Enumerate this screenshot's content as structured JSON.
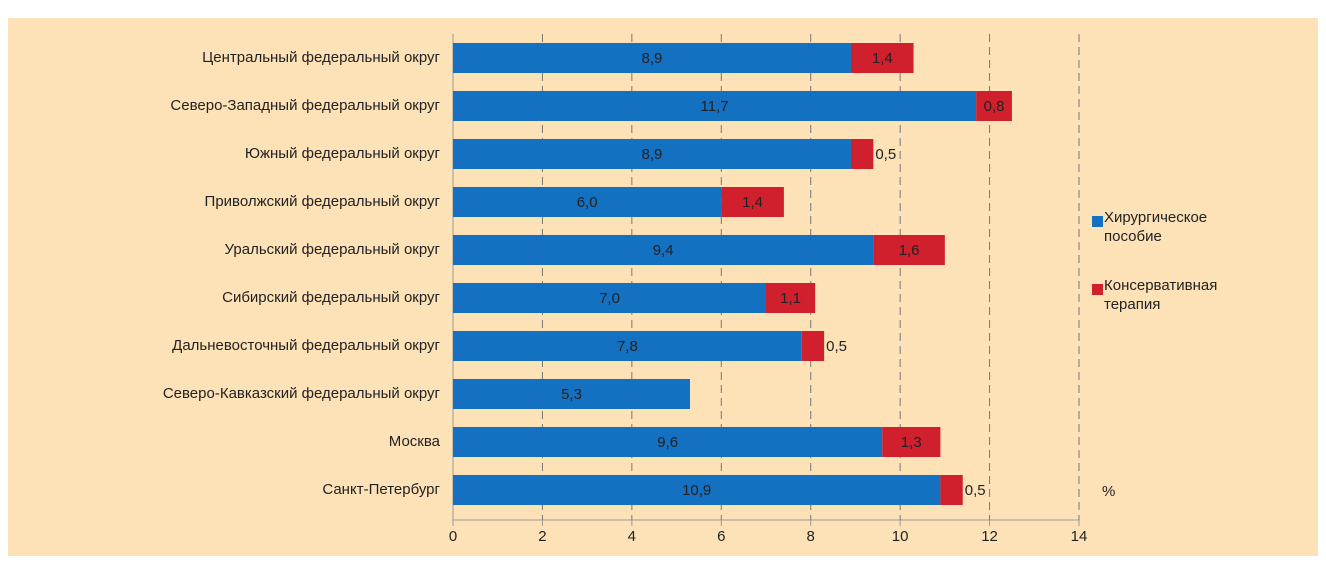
{
  "chart_data": {
    "type": "stacked_barh",
    "categories": [
      "Центральный федеральный округ",
      "Северо-Западный федеральный округ",
      "Южный федеральный округ",
      "Приволжский федеральный округ",
      "Уральский федеральный округ",
      "Сибирский федеральный округ",
      "Дальневосточный федеральный округ",
      "Северо-Кавказский федеральный округ",
      "Москва",
      "Санкт-Петербург"
    ],
    "series": [
      {
        "name": "Хирургическое пособие",
        "color": "#1470c0",
        "values": [
          8.9,
          11.7,
          8.9,
          6.0,
          9.4,
          7.0,
          7.8,
          5.3,
          9.6,
          10.9
        ],
        "value_labels": [
          "8,9",
          "11,7",
          "8,9",
          "6,0",
          "9,4",
          "7,0",
          "7,8",
          "5,3",
          "9,6",
          "10,9"
        ]
      },
      {
        "name": "Консервативная терапия",
        "color": "#d0202e",
        "values": [
          1.4,
          0.8,
          0.5,
          1.4,
          1.6,
          1.1,
          0.5,
          null,
          1.3,
          0.5
        ],
        "value_labels": [
          "1,4",
          "0,8",
          "0,5",
          "1,4",
          "1,6",
          "1,1",
          "0,5",
          null,
          "1,3",
          "0,5"
        ]
      }
    ],
    "xlabel": "%",
    "xlim": [
      0,
      14
    ],
    "xticks": [
      0,
      2,
      4,
      6,
      8,
      10,
      12,
      14
    ],
    "grid": true,
    "legend": "right"
  }
}
